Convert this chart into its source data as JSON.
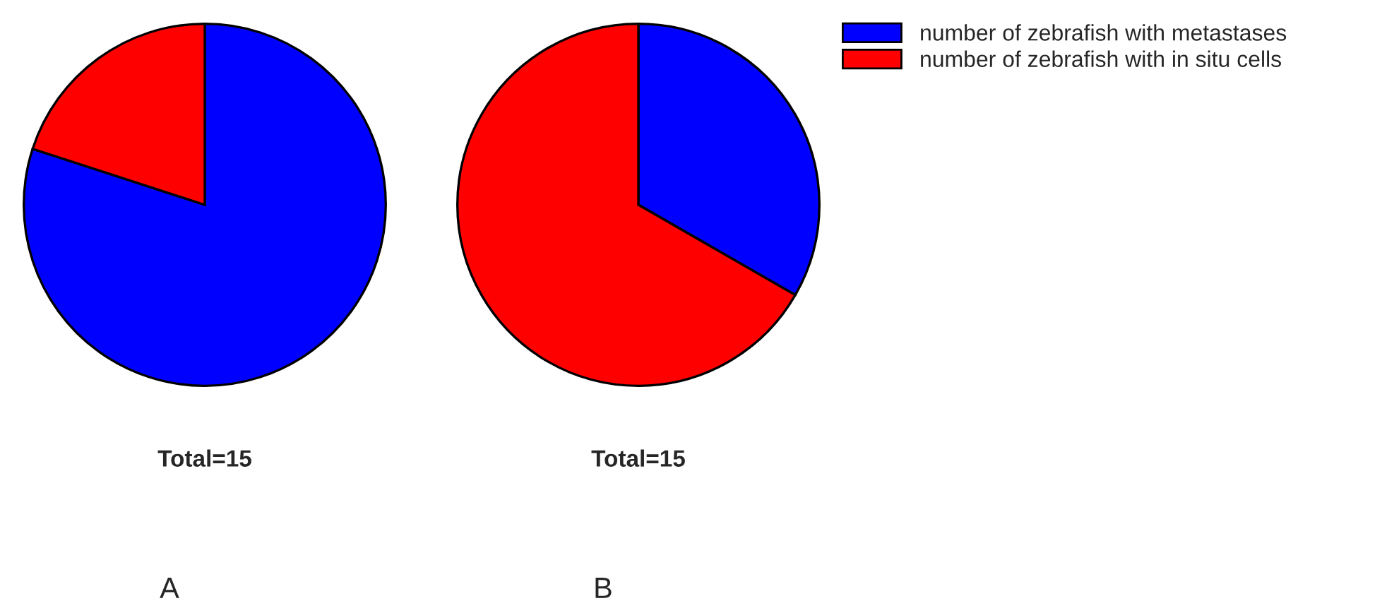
{
  "chart_data": [
    {
      "type": "pie",
      "categories": [
        "number of zebrafish with metastases",
        "number of zebrafish with in situ cells"
      ],
      "values": [
        80,
        20
      ],
      "colors": [
        "#0000ff",
        "#ff0000"
      ],
      "annotations": [
        "Total=15",
        "A"
      ],
      "legend": "right"
    },
    {
      "type": "pie",
      "categories": [
        null,
        null
      ],
      "values": [
        33.3,
        66.7
      ],
      "colors": [
        "#0000ff",
        "#ff0000"
      ],
      "annotations": [
        "Total=15",
        "B"
      ]
    }
  ]
}
